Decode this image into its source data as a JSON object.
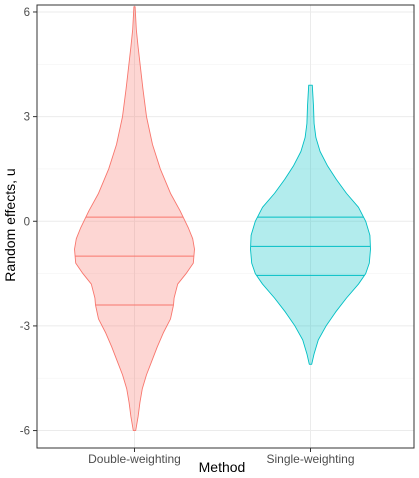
{
  "chart_data": {
    "type": "violin",
    "xlabel": "Method",
    "ylabel": "Random effects, u",
    "categories": [
      "Double-weighting",
      "Single-weighting"
    ],
    "yticks": [
      "-6",
      "-3",
      "0",
      "3",
      "6"
    ],
    "ytick_values": [
      -6,
      -3,
      0,
      3,
      6
    ],
    "ylim": [
      -6.5,
      6.2
    ],
    "grid": true,
    "legend": "none",
    "series": [
      {
        "category": "Double-weighting",
        "fill": "#F8766D",
        "fill_opacity": 0.3,
        "range": [
          -6.0,
          6.15
        ],
        "quantiles": [
          -2.4,
          -1.0,
          0.12
        ],
        "density": [
          [
            6.15,
            0.01
          ],
          [
            5.5,
            0.03
          ],
          [
            5.0,
            0.06
          ],
          [
            4.4,
            0.1
          ],
          [
            3.8,
            0.14
          ],
          [
            3.0,
            0.2
          ],
          [
            2.2,
            0.3
          ],
          [
            1.5,
            0.43
          ],
          [
            0.8,
            0.6
          ],
          [
            0.3,
            0.76
          ],
          [
            -0.2,
            0.9
          ],
          [
            -0.5,
            0.97
          ],
          [
            -0.8,
            1.0
          ],
          [
            -1.2,
            0.98
          ],
          [
            -1.5,
            0.86
          ],
          [
            -1.8,
            0.72
          ],
          [
            -2.2,
            0.66
          ],
          [
            -2.4,
            0.65
          ],
          [
            -2.8,
            0.6
          ],
          [
            -3.2,
            0.48
          ],
          [
            -3.6,
            0.38
          ],
          [
            -4.0,
            0.29
          ],
          [
            -4.4,
            0.2
          ],
          [
            -4.8,
            0.13
          ],
          [
            -5.2,
            0.09
          ],
          [
            -5.6,
            0.06
          ],
          [
            -6.0,
            0.02
          ]
        ]
      },
      {
        "category": "Single-weighting",
        "fill": "#00BFC4",
        "fill_opacity": 0.3,
        "range": [
          -4.1,
          3.9
        ],
        "quantiles": [
          -1.55,
          -0.72,
          0.12
        ],
        "density": [
          [
            3.9,
            0.03
          ],
          [
            3.6,
            0.04
          ],
          [
            3.3,
            0.05
          ],
          [
            2.8,
            0.06
          ],
          [
            2.4,
            0.09
          ],
          [
            2.0,
            0.16
          ],
          [
            1.6,
            0.28
          ],
          [
            1.2,
            0.43
          ],
          [
            0.8,
            0.6
          ],
          [
            0.4,
            0.8
          ],
          [
            0.0,
            0.92
          ],
          [
            -0.4,
            0.99
          ],
          [
            -0.8,
            1.0
          ],
          [
            -1.2,
            0.98
          ],
          [
            -1.5,
            0.92
          ],
          [
            -1.8,
            0.8
          ],
          [
            -2.2,
            0.6
          ],
          [
            -2.6,
            0.42
          ],
          [
            -3.0,
            0.26
          ],
          [
            -3.4,
            0.13
          ],
          [
            -3.8,
            0.06
          ],
          [
            -4.1,
            0.02
          ]
        ]
      }
    ]
  }
}
